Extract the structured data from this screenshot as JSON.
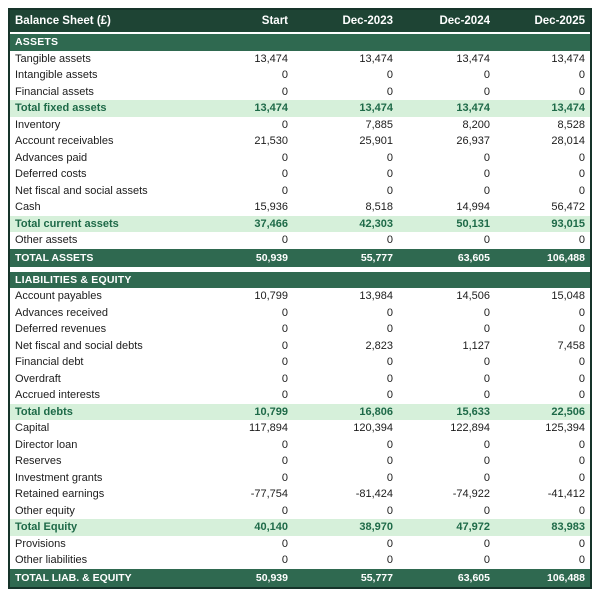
{
  "header": {
    "title": "Balance Sheet (£)",
    "columns": [
      "Start",
      "Dec-2023",
      "Dec-2024",
      "Dec-2025"
    ]
  },
  "colors": {
    "header_bg": "#1e4434",
    "band_bg": "#2f6950",
    "subtotal_bg": "#d6f0da",
    "subtotal_text": "#1e6a48",
    "border": "#16342a"
  },
  "sections": [
    {
      "header": "ASSETS",
      "rows": [
        {
          "label": "Tangible assets",
          "style": "normal",
          "values": [
            "13,474",
            "13,474",
            "13,474",
            "13,474"
          ]
        },
        {
          "label": "Intangible assets",
          "style": "normal",
          "values": [
            "0",
            "0",
            "0",
            "0"
          ]
        },
        {
          "label": "Financial assets",
          "style": "normal",
          "values": [
            "0",
            "0",
            "0",
            "0"
          ]
        },
        {
          "label": "Total fixed assets",
          "style": "subtotal",
          "values": [
            "13,474",
            "13,474",
            "13,474",
            "13,474"
          ]
        },
        {
          "label": "Inventory",
          "style": "normal",
          "values": [
            "0",
            "7,885",
            "8,200",
            "8,528"
          ]
        },
        {
          "label": "Account receivables",
          "style": "normal",
          "values": [
            "21,530",
            "25,901",
            "26,937",
            "28,014"
          ]
        },
        {
          "label": "Advances paid",
          "style": "normal",
          "values": [
            "0",
            "0",
            "0",
            "0"
          ]
        },
        {
          "label": "Deferred costs",
          "style": "normal",
          "values": [
            "0",
            "0",
            "0",
            "0"
          ]
        },
        {
          "label": "Net fiscal and social assets",
          "style": "normal",
          "values": [
            "0",
            "0",
            "0",
            "0"
          ]
        },
        {
          "label": "Cash",
          "style": "normal",
          "values": [
            "15,936",
            "8,518",
            "14,994",
            "56,472"
          ]
        },
        {
          "label": "Total current assets",
          "style": "subtotal",
          "values": [
            "37,466",
            "42,303",
            "50,131",
            "93,015"
          ]
        },
        {
          "label": "Other assets",
          "style": "normal",
          "values": [
            "0",
            "0",
            "0",
            "0"
          ]
        }
      ],
      "total": {
        "label": "TOTAL ASSETS",
        "values": [
          "50,939",
          "55,777",
          "63,605",
          "106,488"
        ]
      }
    },
    {
      "header": "LIABILITIES & EQUITY",
      "rows": [
        {
          "label": "Account payables",
          "style": "normal",
          "values": [
            "10,799",
            "13,984",
            "14,506",
            "15,048"
          ]
        },
        {
          "label": "Advances received",
          "style": "normal",
          "values": [
            "0",
            "0",
            "0",
            "0"
          ]
        },
        {
          "label": "Deferred revenues",
          "style": "normal",
          "values": [
            "0",
            "0",
            "0",
            "0"
          ]
        },
        {
          "label": "Net fiscal and social debts",
          "style": "normal",
          "values": [
            "0",
            "2,823",
            "1,127",
            "7,458"
          ]
        },
        {
          "label": "Financial debt",
          "style": "normal",
          "values": [
            "0",
            "0",
            "0",
            "0"
          ]
        },
        {
          "label": "Overdraft",
          "style": "normal",
          "values": [
            "0",
            "0",
            "0",
            "0"
          ]
        },
        {
          "label": "Accrued interests",
          "style": "normal",
          "values": [
            "0",
            "0",
            "0",
            "0"
          ]
        },
        {
          "label": "Total debts",
          "style": "subtotal",
          "values": [
            "10,799",
            "16,806",
            "15,633",
            "22,506"
          ]
        },
        {
          "label": "Capital",
          "style": "normal",
          "values": [
            "117,894",
            "120,394",
            "122,894",
            "125,394"
          ]
        },
        {
          "label": "Director loan",
          "style": "normal",
          "values": [
            "0",
            "0",
            "0",
            "0"
          ]
        },
        {
          "label": "Reserves",
          "style": "normal",
          "values": [
            "0",
            "0",
            "0",
            "0"
          ]
        },
        {
          "label": "Investment grants",
          "style": "normal",
          "values": [
            "0",
            "0",
            "0",
            "0"
          ]
        },
        {
          "label": "Retained earnings",
          "style": "normal",
          "values": [
            "-77,754",
            "-81,424",
            "-74,922",
            "-41,412"
          ]
        },
        {
          "label": "Other equity",
          "style": "normal",
          "values": [
            "0",
            "0",
            "0",
            "0"
          ]
        },
        {
          "label": "Total Equity",
          "style": "subtotal",
          "values": [
            "40,140",
            "38,970",
            "47,972",
            "83,983"
          ]
        },
        {
          "label": "Provisions",
          "style": "normal",
          "values": [
            "0",
            "0",
            "0",
            "0"
          ]
        },
        {
          "label": "Other liabilities",
          "style": "normal",
          "values": [
            "0",
            "0",
            "0",
            "0"
          ]
        }
      ],
      "total": {
        "label": "TOTAL LIAB. & EQUITY",
        "values": [
          "50,939",
          "55,777",
          "63,605",
          "106,488"
        ]
      }
    }
  ]
}
